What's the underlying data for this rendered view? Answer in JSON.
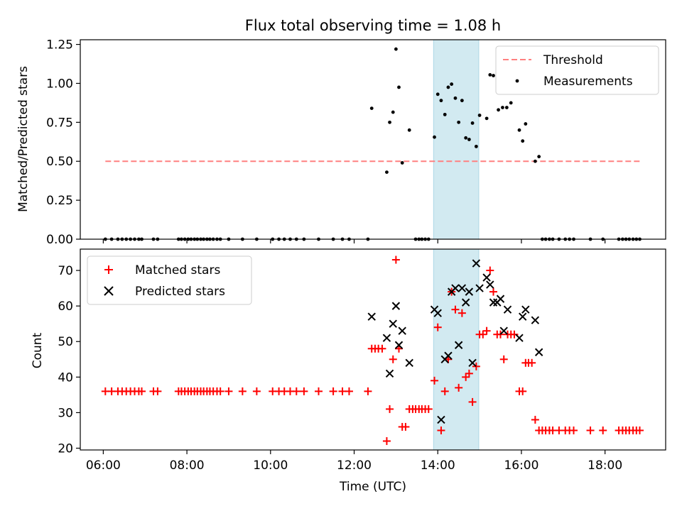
{
  "chart_data": [
    {
      "type": "scatter",
      "title": "Flux total observing time = 1.08 h",
      "xlabel": "",
      "ylabel": "Matched/Predicted stars",
      "ylim": [
        0.0,
        1.28
      ],
      "yticks": [
        "0.00",
        "0.25",
        "0.50",
        "0.75",
        "1.00",
        "1.25"
      ],
      "ytick_values": [
        0.0,
        0.25,
        0.5,
        0.75,
        1.0,
        1.25
      ],
      "xlim": [
        5.45,
        19.45
      ],
      "x_unit": "hours (UTC)",
      "highlight_span": [
        13.9,
        14.98
      ],
      "highlight_color": "#add8e6",
      "legend_position": "top-right",
      "legend": {
        "threshold": "Threshold",
        "measurements": "Measurements"
      },
      "threshold": {
        "name": "Threshold",
        "value": 0.5,
        "x_range": [
          6.05,
          18.85
        ],
        "color": "#ff8080"
      },
      "series": [
        {
          "name": "Measurements",
          "color": "#000000",
          "points": [
            [
              6.05,
              0
            ],
            [
              6.2,
              0
            ],
            [
              6.35,
              0
            ],
            [
              6.45,
              0
            ],
            [
              6.55,
              0
            ],
            [
              6.65,
              0
            ],
            [
              6.75,
              0
            ],
            [
              6.85,
              0
            ],
            [
              6.92,
              0
            ],
            [
              7.2,
              0
            ],
            [
              7.3,
              0
            ],
            [
              7.8,
              0
            ],
            [
              7.87,
              0
            ],
            [
              7.95,
              0
            ],
            [
              8.03,
              0
            ],
            [
              8.1,
              0
            ],
            [
              8.18,
              0
            ],
            [
              8.25,
              0
            ],
            [
              8.33,
              0
            ],
            [
              8.4,
              0
            ],
            [
              8.48,
              0
            ],
            [
              8.55,
              0
            ],
            [
              8.63,
              0
            ],
            [
              8.72,
              0
            ],
            [
              8.8,
              0
            ],
            [
              9.0,
              0
            ],
            [
              9.33,
              0
            ],
            [
              9.67,
              0
            ],
            [
              10.05,
              0
            ],
            [
              10.2,
              0
            ],
            [
              10.33,
              0
            ],
            [
              10.47,
              0
            ],
            [
              10.62,
              0
            ],
            [
              10.8,
              0
            ],
            [
              11.15,
              0
            ],
            [
              11.5,
              0
            ],
            [
              11.72,
              0
            ],
            [
              11.88,
              0
            ],
            [
              12.33,
              0
            ],
            [
              12.42,
              0.84
            ],
            [
              12.78,
              0.43
            ],
            [
              12.85,
              0.75
            ],
            [
              12.93,
              0.815
            ],
            [
              13.0,
              1.22
            ],
            [
              13.07,
              0.975
            ],
            [
              13.15,
              0.49
            ],
            [
              13.32,
              0.7
            ],
            [
              13.47,
              0
            ],
            [
              13.55,
              0
            ],
            [
              13.62,
              0
            ],
            [
              13.7,
              0
            ],
            [
              13.78,
              0
            ],
            [
              13.92,
              0.655
            ],
            [
              14.0,
              0.93
            ],
            [
              14.08,
              0.89
            ],
            [
              14.17,
              0.8
            ],
            [
              14.25,
              0.975
            ],
            [
              14.33,
              0.995
            ],
            [
              14.42,
              0.905
            ],
            [
              14.5,
              0.75
            ],
            [
              14.58,
              0.89
            ],
            [
              14.67,
              0.65
            ],
            [
              14.75,
              0.64
            ],
            [
              14.83,
              0.745
            ],
            [
              14.92,
              0.595
            ],
            [
              15.0,
              0.795
            ],
            [
              15.17,
              0.775
            ],
            [
              15.25,
              1.055
            ],
            [
              15.33,
              1.05
            ],
            [
              15.45,
              0.83
            ],
            [
              15.55,
              0.845
            ],
            [
              15.65,
              0.845
            ],
            [
              15.75,
              0.875
            ],
            [
              15.95,
              0.7
            ],
            [
              16.03,
              0.63
            ],
            [
              16.1,
              0.74
            ],
            [
              16.33,
              0.5
            ],
            [
              16.42,
              0.53
            ],
            [
              16.5,
              0
            ],
            [
              16.58,
              0
            ],
            [
              16.67,
              0
            ],
            [
              16.75,
              0
            ],
            [
              16.9,
              0
            ],
            [
              17.05,
              0
            ],
            [
              17.15,
              0
            ],
            [
              17.25,
              0
            ],
            [
              17.65,
              0
            ],
            [
              17.95,
              0
            ],
            [
              18.33,
              0
            ],
            [
              18.42,
              0
            ],
            [
              18.5,
              0
            ],
            [
              18.58,
              0
            ],
            [
              18.67,
              0
            ],
            [
              18.75,
              0
            ],
            [
              18.83,
              0
            ]
          ]
        }
      ]
    },
    {
      "type": "scatter",
      "title": "",
      "xlabel": "Time (UTC)",
      "ylabel": "Count",
      "ylim": [
        19.5,
        76
      ],
      "yticks": [
        "20",
        "30",
        "40",
        "50",
        "60",
        "70"
      ],
      "ytick_values": [
        20,
        30,
        40,
        50,
        60,
        70
      ],
      "xlim": [
        5.45,
        19.45
      ],
      "xticks": [
        "06:00",
        "08:00",
        "10:00",
        "12:00",
        "14:00",
        "16:00",
        "18:00"
      ],
      "xtick_values": [
        6,
        8,
        10,
        12,
        14,
        16,
        18
      ],
      "highlight_span": [
        13.9,
        14.98
      ],
      "highlight_color": "#add8e6",
      "legend_position": "top-left",
      "legend": {
        "matched": "Matched stars",
        "predicted": "Predicted stars"
      },
      "series": [
        {
          "name": "Matched stars",
          "marker": "+",
          "color": "#ff0000",
          "points": [
            [
              6.05,
              36
            ],
            [
              6.2,
              36
            ],
            [
              6.35,
              36
            ],
            [
              6.45,
              36
            ],
            [
              6.55,
              36
            ],
            [
              6.65,
              36
            ],
            [
              6.75,
              36
            ],
            [
              6.85,
              36
            ],
            [
              6.92,
              36
            ],
            [
              7.2,
              36
            ],
            [
              7.3,
              36
            ],
            [
              7.8,
              36
            ],
            [
              7.87,
              36
            ],
            [
              7.95,
              36
            ],
            [
              8.03,
              36
            ],
            [
              8.1,
              36
            ],
            [
              8.18,
              36
            ],
            [
              8.25,
              36
            ],
            [
              8.33,
              36
            ],
            [
              8.4,
              36
            ],
            [
              8.48,
              36
            ],
            [
              8.55,
              36
            ],
            [
              8.63,
              36
            ],
            [
              8.72,
              36
            ],
            [
              8.8,
              36
            ],
            [
              9.0,
              36
            ],
            [
              9.33,
              36
            ],
            [
              9.67,
              36
            ],
            [
              10.05,
              36
            ],
            [
              10.2,
              36
            ],
            [
              10.33,
              36
            ],
            [
              10.47,
              36
            ],
            [
              10.62,
              36
            ],
            [
              10.8,
              36
            ],
            [
              11.15,
              36
            ],
            [
              11.5,
              36
            ],
            [
              11.72,
              36
            ],
            [
              11.88,
              36
            ],
            [
              12.33,
              36
            ],
            [
              12.42,
              48
            ],
            [
              12.5,
              48
            ],
            [
              12.58,
              48
            ],
            [
              12.67,
              48
            ],
            [
              12.78,
              22
            ],
            [
              12.85,
              31
            ],
            [
              12.93,
              45
            ],
            [
              13.0,
              73
            ],
            [
              13.07,
              48
            ],
            [
              13.15,
              26
            ],
            [
              13.23,
              26
            ],
            [
              13.32,
              31
            ],
            [
              13.4,
              31
            ],
            [
              13.47,
              31
            ],
            [
              13.55,
              31
            ],
            [
              13.62,
              31
            ],
            [
              13.7,
              31
            ],
            [
              13.78,
              31
            ],
            [
              13.92,
              39
            ],
            [
              14.0,
              54
            ],
            [
              14.08,
              25
            ],
            [
              14.17,
              36
            ],
            [
              14.25,
              45
            ],
            [
              14.33,
              64
            ],
            [
              14.42,
              59
            ],
            [
              14.5,
              37
            ],
            [
              14.58,
              58
            ],
            [
              14.67,
              40
            ],
            [
              14.75,
              41
            ],
            [
              14.83,
              33
            ],
            [
              14.92,
              43
            ],
            [
              15.0,
              52
            ],
            [
              15.08,
              52
            ],
            [
              15.17,
              53
            ],
            [
              15.25,
              70
            ],
            [
              15.33,
              64
            ],
            [
              15.42,
              52
            ],
            [
              15.5,
              52
            ],
            [
              15.58,
              45
            ],
            [
              15.67,
              52
            ],
            [
              15.75,
              52
            ],
            [
              15.83,
              52
            ],
            [
              15.95,
              36
            ],
            [
              16.03,
              36
            ],
            [
              16.1,
              44
            ],
            [
              16.17,
              44
            ],
            [
              16.25,
              44
            ],
            [
              16.33,
              28
            ],
            [
              16.42,
              25
            ],
            [
              16.5,
              25
            ],
            [
              16.58,
              25
            ],
            [
              16.67,
              25
            ],
            [
              16.75,
              25
            ],
            [
              16.9,
              25
            ],
            [
              17.05,
              25
            ],
            [
              17.15,
              25
            ],
            [
              17.25,
              25
            ],
            [
              17.65,
              25
            ],
            [
              17.95,
              25
            ],
            [
              18.33,
              25
            ],
            [
              18.42,
              25
            ],
            [
              18.5,
              25
            ],
            [
              18.58,
              25
            ],
            [
              18.67,
              25
            ],
            [
              18.75,
              25
            ],
            [
              18.83,
              25
            ]
          ]
        },
        {
          "name": "Predicted stars",
          "marker": "x",
          "color": "#000000",
          "points": [
            [
              12.42,
              57
            ],
            [
              12.78,
              51
            ],
            [
              12.85,
              41
            ],
            [
              12.93,
              55
            ],
            [
              13.0,
              60
            ],
            [
              13.07,
              49
            ],
            [
              13.15,
              53
            ],
            [
              13.32,
              44
            ],
            [
              13.92,
              59
            ],
            [
              14.0,
              58
            ],
            [
              14.08,
              28
            ],
            [
              14.17,
              45
            ],
            [
              14.25,
              46
            ],
            [
              14.33,
              64
            ],
            [
              14.42,
              65
            ],
            [
              14.5,
              49
            ],
            [
              14.58,
              65
            ],
            [
              14.67,
              61
            ],
            [
              14.75,
              64
            ],
            [
              14.83,
              44
            ],
            [
              14.92,
              72
            ],
            [
              15.0,
              65
            ],
            [
              15.17,
              68
            ],
            [
              15.25,
              66
            ],
            [
              15.33,
              61
            ],
            [
              15.42,
              61
            ],
            [
              15.5,
              62
            ],
            [
              15.58,
              53
            ],
            [
              15.67,
              59
            ],
            [
              15.95,
              51
            ],
            [
              16.03,
              57
            ],
            [
              16.1,
              59
            ],
            [
              16.33,
              56
            ],
            [
              16.42,
              47
            ]
          ]
        }
      ]
    }
  ]
}
